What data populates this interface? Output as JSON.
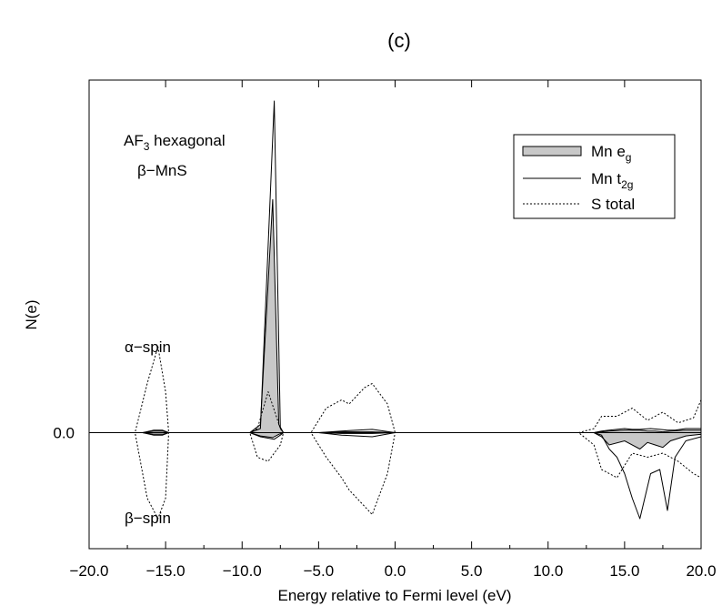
{
  "chart_data": {
    "type": "area",
    "panel_label": "(c)",
    "xlabel": "Energy relative to Fermi level (eV)",
    "ylabel": "N(e)",
    "xlim": [
      -20.0,
      20.0
    ],
    "ylim": [
      -2.2,
      4.5
    ],
    "x_ticks": [
      -20.0,
      -15.0,
      -10.0,
      -5.0,
      0.0,
      5.0,
      10.0,
      15.0,
      20.0
    ],
    "x_tick_labels": [
      "−20.0",
      "−15.0",
      "−10.0",
      "−5.0",
      "0.0",
      "5.0",
      "10.0",
      "15.0",
      "20.0"
    ],
    "y_ticks": [
      0.0
    ],
    "y_tick_labels": [
      "0.0"
    ],
    "annotations": {
      "structure_line1_main": "AF",
      "structure_line1_sub": "3",
      "structure_line1_rest": " hexagonal",
      "structure_line2": "β−MnS",
      "alpha_spin": "α−spin",
      "beta_spin": "β−spin"
    },
    "legend": {
      "placement": "top-right",
      "entries": [
        {
          "main": "Mn e",
          "sub": "g",
          "style": "filled"
        },
        {
          "main": "Mn t",
          "sub": "2g",
          "style": "solid"
        },
        {
          "main": "S total",
          "sub": "",
          "style": "dotted"
        }
      ]
    },
    "colors": {
      "fill": "#c8c8c8",
      "line": "#000000"
    },
    "series": [
      {
        "name": "Mn eg",
        "style": "filled",
        "x": [
          -20,
          -16.5,
          -15.8,
          -15.2,
          -14.8,
          -9.5,
          -8.8,
          -8.0,
          -7.6,
          -7.3,
          -5.0,
          -3.5,
          -1.5,
          0,
          12.5,
          13.0,
          13.5,
          14.0,
          15.0,
          16.0,
          16.5,
          17.0,
          17.5,
          18.0,
          19.0,
          20.0
        ],
        "y_alpha": [
          0,
          0,
          0.02,
          0.02,
          0,
          0,
          0.1,
          2.85,
          0.1,
          0,
          0,
          0.01,
          0.01,
          0,
          0,
          0,
          0.01,
          0.02,
          0.03,
          0.03,
          0.02,
          0.02,
          0.01,
          0.02,
          0.03,
          0.03
        ],
        "y_beta": [
          0,
          0,
          -0.02,
          -0.02,
          0,
          0,
          -0.04,
          -0.06,
          -0.02,
          0,
          0,
          -0.01,
          -0.01,
          0,
          0,
          0,
          -0.05,
          -0.15,
          -0.1,
          -0.2,
          -0.12,
          -0.15,
          -0.18,
          -0.1,
          -0.04,
          -0.02
        ]
      },
      {
        "name": "Mn t2g",
        "style": "solid",
        "x": [
          -20,
          -16.5,
          -15.8,
          -15.2,
          -14.8,
          -9.5,
          -8.8,
          -7.9,
          -7.5,
          -7.3,
          -5.0,
          -3.5,
          -1.5,
          0,
          12.5,
          13.0,
          13.5,
          14.0,
          14.5,
          15.0,
          15.5,
          16.0,
          16.7,
          17.3,
          17.8,
          18.3,
          19.0,
          20.0
        ],
        "y_alpha": [
          0,
          0,
          0.03,
          0.03,
          0,
          0,
          0.05,
          4.05,
          0.05,
          0,
          0,
          0.02,
          0.04,
          0,
          0,
          0,
          0.02,
          0.03,
          0.04,
          0.05,
          0.04,
          0.04,
          0.05,
          0.04,
          0.03,
          0.03,
          0.05,
          0.05
        ],
        "y_beta": [
          0,
          0,
          -0.03,
          -0.03,
          0,
          0,
          -0.05,
          -0.08,
          -0.03,
          0,
          0,
          -0.03,
          -0.05,
          0,
          0,
          0,
          -0.03,
          -0.2,
          -0.3,
          -0.5,
          -0.8,
          -1.05,
          -0.5,
          -0.45,
          -0.95,
          -0.3,
          -0.1,
          -0.05
        ]
      },
      {
        "name": "S total",
        "style": "dotted",
        "x": [
          -20,
          -17.0,
          -16.2,
          -15.5,
          -15.0,
          -14.8,
          -9.5,
          -9.0,
          -8.3,
          -7.5,
          -7.3,
          -5.5,
          -4.5,
          -3.5,
          -3.0,
          -2.0,
          -1.5,
          -0.5,
          0,
          12.0,
          13.0,
          13.5,
          14.5,
          15.5,
          16.5,
          17.5,
          18.5,
          19.5,
          20.0
        ],
        "y_alpha": [
          0,
          0,
          0.6,
          1.05,
          0.5,
          0,
          0,
          0.05,
          0.5,
          0.05,
          0,
          0,
          0.3,
          0.4,
          0.35,
          0.55,
          0.6,
          0.35,
          0,
          0,
          0.05,
          0.2,
          0.2,
          0.3,
          0.15,
          0.25,
          0.12,
          0.18,
          0.4
        ],
        "y_beta": [
          0,
          0,
          -0.8,
          -1.05,
          -0.8,
          0,
          0,
          -0.3,
          -0.35,
          -0.15,
          0,
          0,
          -0.3,
          -0.55,
          -0.7,
          -0.9,
          -1.0,
          -0.5,
          0,
          0,
          -0.15,
          -0.45,
          -0.55,
          -0.25,
          -0.3,
          -0.25,
          -0.35,
          -0.5,
          -0.55
        ]
      }
    ]
  }
}
